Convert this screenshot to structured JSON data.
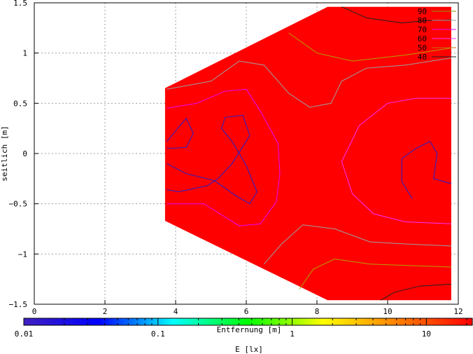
{
  "chart_data": {
    "type": "heatmap",
    "title": "",
    "xlabel": "Entfernung [m]",
    "ylabel": "seitlich [m]",
    "xlim": [
      0,
      12
    ],
    "ylim": [
      -1.5,
      1.5
    ],
    "x_ticks": [
      "0",
      "2",
      "4",
      "6",
      "8",
      "10",
      "12"
    ],
    "y_ticks": [
      "1.5",
      "1",
      "0.5",
      "0",
      "−0.5",
      "−1",
      "−1.5"
    ],
    "grid": true,
    "fill_color": "#ff0000",
    "region_polygon": [
      [
        3.7,
        0.65
      ],
      [
        8.3,
        1.46
      ],
      [
        11.8,
        1.46
      ],
      [
        11.8,
        -1.46
      ],
      [
        8.3,
        -1.46
      ],
      [
        3.7,
        -0.67
      ]
    ],
    "legend": {
      "placement": "top-right",
      "entries": [
        {
          "label": "90",
          "color": "#8b9b00"
        },
        {
          "label": "80",
          "color": "#9aa0a0"
        },
        {
          "label": "70",
          "color": "#e000ff"
        },
        {
          "label": "60",
          "color": "#ff30ff"
        },
        {
          "label": "50",
          "color": "#c07010"
        },
        {
          "label": "40",
          "color": "#202020"
        }
      ]
    },
    "contours": [
      {
        "level": "90",
        "color": "#b3a000",
        "points": [
          [
            7.2,
            1.2
          ],
          [
            8.0,
            1.0
          ],
          [
            9.0,
            0.92
          ],
          [
            10.5,
            0.98
          ],
          [
            11.8,
            1.05
          ]
        ]
      },
      {
        "level": "90",
        "color": "#b3a000",
        "points": [
          [
            7.5,
            -1.35
          ],
          [
            7.9,
            -1.15
          ],
          [
            8.5,
            -1.05
          ],
          [
            9.5,
            -1.1
          ],
          [
            11.8,
            -1.13
          ]
        ]
      },
      {
        "level": "80",
        "color": "#9aa0a0",
        "points": [
          [
            3.75,
            0.64
          ],
          [
            5.0,
            0.72
          ],
          [
            5.8,
            0.92
          ],
          [
            6.5,
            0.88
          ],
          [
            7.2,
            0.6
          ],
          [
            7.8,
            0.46
          ],
          [
            8.4,
            0.5
          ],
          [
            8.7,
            0.72
          ],
          [
            9.4,
            0.85
          ],
          [
            10.5,
            0.88
          ],
          [
            11.8,
            0.95
          ]
        ]
      },
      {
        "level": "80",
        "color": "#9aa0a0",
        "points": [
          [
            6.5,
            -1.1
          ],
          [
            7.0,
            -0.9
          ],
          [
            7.6,
            -0.71
          ],
          [
            8.5,
            -0.75
          ],
          [
            9.5,
            -0.88
          ],
          [
            10.5,
            -0.9
          ],
          [
            11.8,
            -0.92
          ]
        ]
      },
      {
        "level": "70",
        "color": "#e000ff",
        "points": [
          [
            3.75,
            0.45
          ],
          [
            4.6,
            0.5
          ],
          [
            5.4,
            0.62
          ],
          [
            6.0,
            0.64
          ],
          [
            6.4,
            0.42
          ],
          [
            6.9,
            0.1
          ],
          [
            6.95,
            -0.2
          ],
          [
            6.85,
            -0.48
          ],
          [
            6.4,
            -0.7
          ],
          [
            5.8,
            -0.72
          ],
          [
            4.8,
            -0.5
          ],
          [
            3.75,
            -0.5
          ]
        ]
      },
      {
        "level": "60",
        "color": "#ff30ff",
        "points": [
          [
            8.7,
            -0.08
          ],
          [
            9.2,
            0.28
          ],
          [
            10.0,
            0.5
          ],
          [
            10.8,
            0.55
          ],
          [
            11.8,
            0.55
          ]
        ]
      },
      {
        "level": "60",
        "color": "#ff30ff",
        "points": [
          [
            8.7,
            -0.08
          ],
          [
            9.0,
            -0.4
          ],
          [
            9.6,
            -0.6
          ],
          [
            10.5,
            -0.68
          ],
          [
            11.8,
            -0.7
          ]
        ]
      },
      {
        "level": "50",
        "color": "#2020c8",
        "points": [
          [
            3.75,
            0.12
          ],
          [
            4.3,
            0.35
          ],
          [
            4.5,
            0.2
          ],
          [
            4.3,
            0.06
          ],
          [
            3.75,
            0.05
          ]
        ]
      },
      {
        "level": "50",
        "color": "#2020c8",
        "points": [
          [
            3.75,
            -0.1
          ],
          [
            4.3,
            -0.2
          ],
          [
            5.1,
            -0.27
          ],
          [
            5.7,
            -0.42
          ],
          [
            6.1,
            -0.5
          ],
          [
            6.3,
            -0.38
          ],
          [
            6.0,
            -0.12
          ],
          [
            5.8,
            0.0
          ],
          [
            5.6,
            0.12
          ],
          [
            5.3,
            0.25
          ],
          [
            5.4,
            0.36
          ],
          [
            5.9,
            0.38
          ],
          [
            6.1,
            0.18
          ],
          [
            5.6,
            -0.1
          ],
          [
            5.2,
            -0.25
          ],
          [
            4.9,
            -0.32
          ],
          [
            4.1,
            -0.38
          ],
          [
            3.75,
            -0.36
          ]
        ]
      },
      {
        "level": "50",
        "color": "#2020c8",
        "points": [
          [
            10.7,
            -0.45
          ],
          [
            10.4,
            -0.28
          ],
          [
            10.4,
            -0.05
          ],
          [
            10.8,
            0.05
          ],
          [
            11.2,
            0.12
          ],
          [
            11.4,
            0.0
          ],
          [
            11.3,
            -0.25
          ],
          [
            11.8,
            -0.3
          ]
        ]
      },
      {
        "level": "40",
        "color": "#202020",
        "points": [
          [
            8.7,
            1.46
          ],
          [
            9.4,
            1.35
          ],
          [
            10.4,
            1.3
          ],
          [
            11.0,
            1.32
          ],
          [
            11.8,
            1.33
          ]
        ]
      },
      {
        "level": "40",
        "color": "#202020",
        "points": [
          [
            9.8,
            -1.46
          ],
          [
            10.2,
            -1.38
          ],
          [
            10.9,
            -1.32
          ],
          [
            11.8,
            -1.3
          ]
        ]
      }
    ],
    "colorbar": {
      "label": "E [lx]",
      "scale": "log",
      "range": [
        0.01,
        22
      ],
      "tick_labels": [
        "0.01",
        "0.1",
        "1",
        "10"
      ],
      "tick_values": [
        0.01,
        0.1,
        1,
        10
      ],
      "colors": [
        "#4020c0",
        "#0000ff",
        "#00ffff",
        "#00ff00",
        "#ffff00",
        "#ff8000",
        "#ff0000"
      ]
    }
  }
}
